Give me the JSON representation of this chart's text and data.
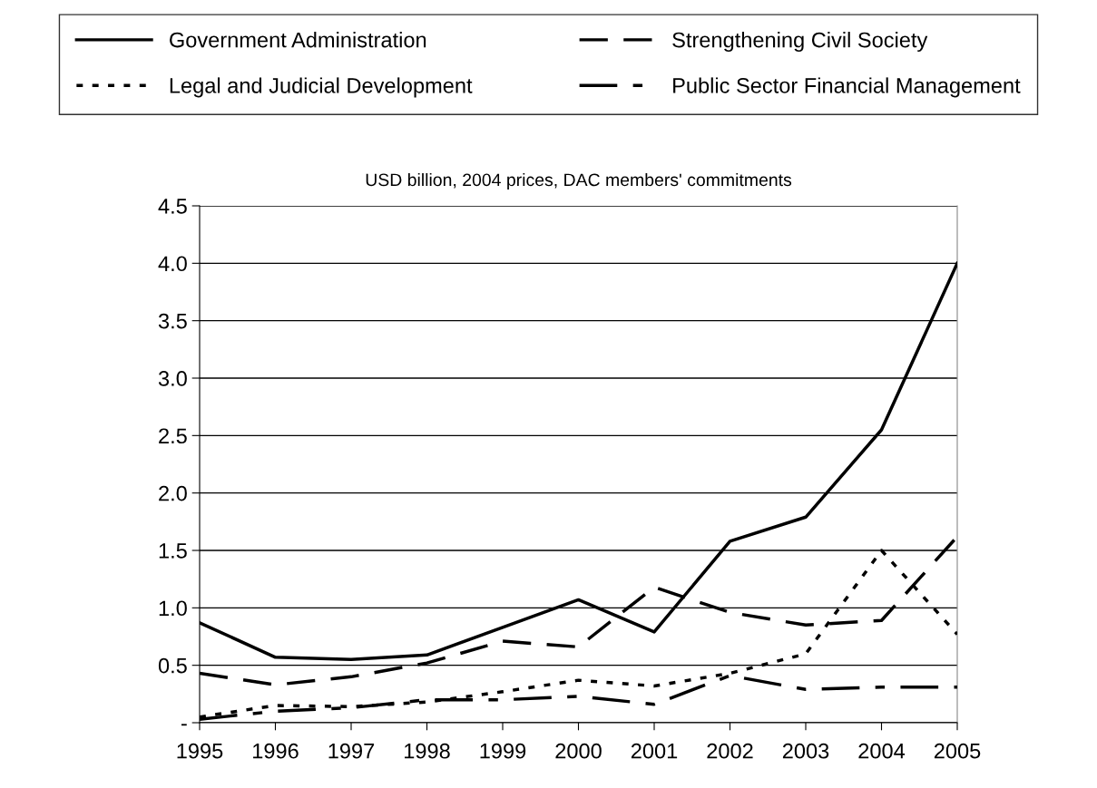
{
  "chart_data": {
    "type": "line",
    "title": "USD billion, 2004 prices, DAC members' commitments",
    "categories": [
      "1995",
      "1996",
      "1997",
      "1998",
      "1999",
      "2000",
      "2001",
      "2002",
      "2003",
      "2004",
      "2005"
    ],
    "series": [
      {
        "name": "Government Administration",
        "color": "#000000",
        "line_style": "solid",
        "values": [
          0.87,
          0.57,
          0.55,
          0.59,
          0.83,
          1.07,
          0.79,
          1.58,
          1.79,
          2.55,
          4.0
        ]
      },
      {
        "name": "Legal and Judicial Development",
        "color": "#000000",
        "line_style": "dotted",
        "values": [
          0.05,
          0.15,
          0.14,
          0.18,
          0.27,
          0.37,
          0.32,
          0.43,
          0.6,
          1.5,
          0.77
        ]
      },
      {
        "name": "Strengthening Civil Society",
        "color": "#000000",
        "line_style": "dashed",
        "values": [
          0.43,
          0.33,
          0.4,
          0.52,
          0.71,
          0.66,
          1.18,
          0.96,
          0.85,
          0.89,
          1.62
        ]
      },
      {
        "name": "Public Sector Financial Management",
        "color": "#000000",
        "line_style": "dashdot",
        "values": [
          0.03,
          0.1,
          0.13,
          0.2,
          0.2,
          0.23,
          0.16,
          0.41,
          0.29,
          0.31,
          0.31
        ]
      }
    ],
    "ylim": [
      0,
      4.5
    ],
    "yticks": [
      {
        "value": 0,
        "label": "-"
      },
      {
        "value": 0.5,
        "label": "0.5"
      },
      {
        "value": 1.0,
        "label": "1.0"
      },
      {
        "value": 1.5,
        "label": "1.5"
      },
      {
        "value": 2.0,
        "label": "2.0"
      },
      {
        "value": 2.5,
        "label": "2.5"
      },
      {
        "value": 3.0,
        "label": "3.0"
      },
      {
        "value": 3.5,
        "label": "3.5"
      },
      {
        "value": 4.0,
        "label": "4.0"
      },
      {
        "value": 4.5,
        "label": "4.5"
      }
    ],
    "grid": "y",
    "legend": "top",
    "marker": "none"
  }
}
